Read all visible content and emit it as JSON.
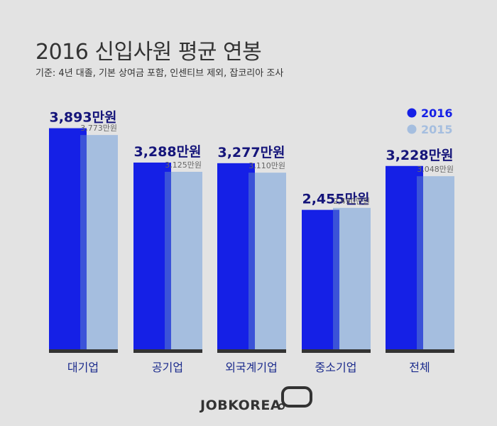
{
  "header": {
    "title": "2016  신입사원  평균 연봉",
    "subtitle": "기준: 4년 대졸, 기본 상여금 포함, 인센티브 제외, 잡코리아 조사"
  },
  "brand": {
    "logo_text": "JOBKOREA"
  },
  "colors": {
    "y2016": "#1520e6",
    "y2016_shadow": "#3b53d8",
    "y2015": "#a5bedf",
    "baseline": "#333333"
  },
  "chart_data": {
    "type": "bar",
    "categories": [
      "대기업",
      "공기업",
      "외국계기업",
      "중소기업",
      "전체"
    ],
    "series": [
      {
        "name": "2016",
        "values": [
          3893,
          3288,
          3277,
          2455,
          3228
        ],
        "labels": [
          "3,893만원",
          "3,288만원",
          "3,277만원",
          "2,455만원",
          "3,228만원"
        ]
      },
      {
        "name": "2015",
        "values": [
          3773,
          3125,
          3110,
          2490,
          3048
        ],
        "labels": [
          "3,773만원",
          "3,125만원",
          "3,110만원",
          "2,490만원",
          "3,048만원"
        ]
      }
    ],
    "legend": "top-right",
    "grid": false,
    "ylim": [
      0,
      4000
    ]
  }
}
